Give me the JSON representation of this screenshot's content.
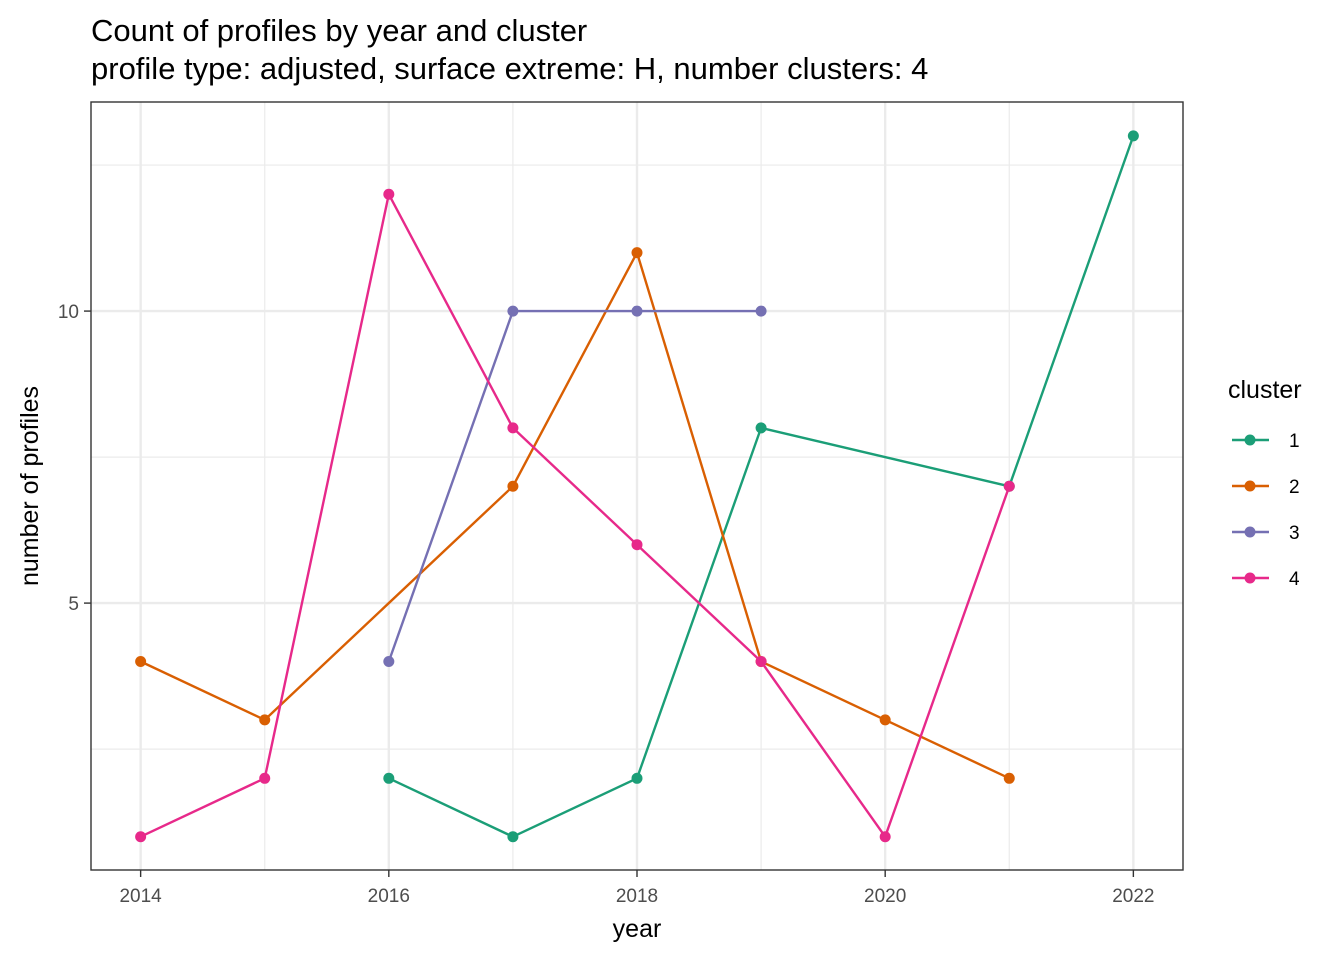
{
  "chart_data": {
    "type": "line",
    "title": "Count of profiles by year and cluster",
    "subtitle": "profile type: adjusted, surface extreme: H, number clusters: 4",
    "xlabel": "year",
    "ylabel": "number of profiles",
    "xlim": [
      2013.6,
      2022.4
    ],
    "ylim": [
      0.43,
      13.58
    ],
    "x_ticks": [
      2014,
      2016,
      2018,
      2020,
      2022
    ],
    "x_tick_labels": [
      "2014",
      "2016",
      "2018",
      "2020",
      "2022"
    ],
    "x_minor_ticks": [
      2015,
      2017,
      2019,
      2021
    ],
    "y_ticks": [
      5,
      10
    ],
    "y_tick_labels": [
      "5",
      "10"
    ],
    "y_minor_ticks": [
      2.5,
      7.5,
      12.5
    ],
    "grid": true,
    "legend": {
      "title": "cluster",
      "position": "right"
    },
    "series": [
      {
        "name": "1",
        "color": "#1b9e77",
        "x": [
          2016,
          2017,
          2018,
          2019,
          2021,
          2022
        ],
        "values": [
          2,
          1,
          2,
          8,
          7,
          13
        ]
      },
      {
        "name": "2",
        "color": "#d95f02",
        "x": [
          2014,
          2015,
          2017,
          2018,
          2019,
          2020,
          2021
        ],
        "values": [
          4,
          3,
          7,
          11,
          4,
          3,
          2
        ]
      },
      {
        "name": "3",
        "color": "#7570b3",
        "x": [
          2016,
          2017,
          2018,
          2019
        ],
        "values": [
          4,
          10,
          10,
          10
        ]
      },
      {
        "name": "4",
        "color": "#e7298a",
        "x": [
          2014,
          2015,
          2016,
          2017,
          2018,
          2019,
          2020,
          2021
        ],
        "values": [
          1,
          2,
          12,
          8,
          6,
          4,
          1,
          7
        ]
      }
    ]
  }
}
